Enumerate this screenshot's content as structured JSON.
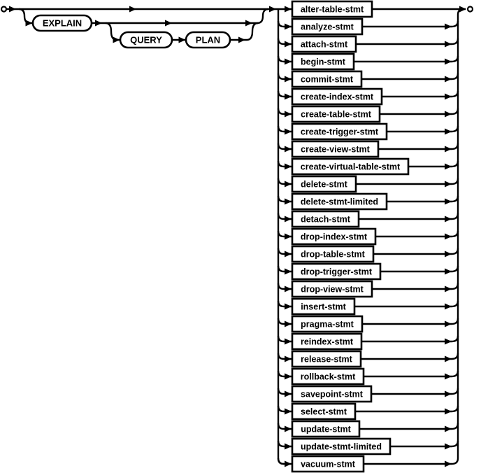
{
  "diagram": {
    "type": "railroad-syntax-diagram",
    "colors": {
      "line": "#000000",
      "text": "#000000",
      "box_fill": "#ffffff",
      "background": "#ffffff"
    },
    "icons": {
      "start": "start-terminal-circle",
      "end": "end-terminal-circle",
      "arrow": "filled-right-arrowhead"
    },
    "keywords": {
      "explain": "EXPLAIN",
      "query": "QUERY",
      "plan": "PLAN"
    },
    "statements": [
      "alter-table-stmt",
      "analyze-stmt",
      "attach-stmt",
      "begin-stmt",
      "commit-stmt",
      "create-index-stmt",
      "create-table-stmt",
      "create-trigger-stmt",
      "create-view-stmt",
      "create-virtual-table-stmt",
      "delete-stmt",
      "delete-stmt-limited",
      "detach-stmt",
      "drop-index-stmt",
      "drop-table-stmt",
      "drop-trigger-stmt",
      "drop-view-stmt",
      "insert-stmt",
      "pragma-stmt",
      "reindex-stmt",
      "release-stmt",
      "rollback-stmt",
      "savepoint-stmt",
      "select-stmt",
      "update-stmt",
      "update-stmt-limited",
      "vacuum-stmt"
    ]
  }
}
